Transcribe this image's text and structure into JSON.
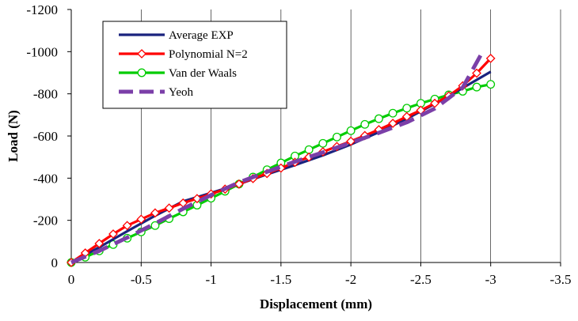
{
  "chart_data": {
    "type": "line",
    "title": "",
    "xlabel": "Displacement (mm)",
    "ylabel": "Load (N)",
    "xlim": [
      0,
      -3.5
    ],
    "ylim": [
      0,
      -1200
    ],
    "x_ticks": [
      0,
      -0.5,
      -1,
      -1.5,
      -2,
      -2.5,
      -3,
      -3.5
    ],
    "y_ticks": [
      0,
      -200,
      -400,
      -600,
      -800,
      -1000,
      -1200
    ],
    "x_tick_labels": [
      "0",
      "-0.5",
      "-1",
      "-1.5",
      "-2",
      "-2.5",
      "-3",
      "-3.5"
    ],
    "y_tick_labels": [
      "0",
      "-200",
      "-400",
      "-600",
      "-800",
      "-1000",
      "-1200"
    ],
    "grid": "vertical",
    "legend_position": "top-left",
    "series": [
      {
        "name": "Average EXP",
        "color": "#1a237e",
        "style": "solid",
        "marker": "none",
        "points": [
          [
            0,
            0
          ],
          [
            -0.2,
            -72
          ],
          [
            -0.4,
            -148
          ],
          [
            -0.6,
            -222
          ],
          [
            -0.8,
            -290
          ],
          [
            -1.0,
            -330
          ],
          [
            -1.2,
            -372
          ],
          [
            -1.4,
            -418
          ],
          [
            -1.6,
            -462
          ],
          [
            -1.8,
            -508
          ],
          [
            -2.0,
            -560
          ],
          [
            -2.2,
            -618
          ],
          [
            -2.4,
            -682
          ],
          [
            -2.6,
            -752
          ],
          [
            -2.8,
            -828
          ],
          [
            -3.0,
            -905
          ]
        ]
      },
      {
        "name": "Polynomial N=2",
        "color": "#ff0000",
        "style": "solid",
        "marker": "diamond",
        "points": [
          [
            0,
            0
          ],
          [
            -0.1,
            -45
          ],
          [
            -0.2,
            -90
          ],
          [
            -0.3,
            -135
          ],
          [
            -0.4,
            -175
          ],
          [
            -0.5,
            -205
          ],
          [
            -0.6,
            -235
          ],
          [
            -0.7,
            -258
          ],
          [
            -0.8,
            -282
          ],
          [
            -0.9,
            -303
          ],
          [
            -1.0,
            -325
          ],
          [
            -1.1,
            -348
          ],
          [
            -1.2,
            -372
          ],
          [
            -1.3,
            -398
          ],
          [
            -1.4,
            -422
          ],
          [
            -1.5,
            -448
          ],
          [
            -1.6,
            -475
          ],
          [
            -1.7,
            -500
          ],
          [
            -1.8,
            -525
          ],
          [
            -1.9,
            -550
          ],
          [
            -2.0,
            -575
          ],
          [
            -2.1,
            -602
          ],
          [
            -2.2,
            -630
          ],
          [
            -2.3,
            -660
          ],
          [
            -2.4,
            -692
          ],
          [
            -2.5,
            -722
          ],
          [
            -2.6,
            -755
          ],
          [
            -2.7,
            -790
          ],
          [
            -2.8,
            -838
          ],
          [
            -2.9,
            -898
          ],
          [
            -3.0,
            -968
          ]
        ]
      },
      {
        "name": "Van der Waals",
        "color": "#00cc00",
        "style": "solid",
        "marker": "circle",
        "points": [
          [
            0,
            0
          ],
          [
            -0.1,
            -25
          ],
          [
            -0.2,
            -55
          ],
          [
            -0.3,
            -85
          ],
          [
            -0.4,
            -115
          ],
          [
            -0.5,
            -145
          ],
          [
            -0.6,
            -175
          ],
          [
            -0.7,
            -208
          ],
          [
            -0.8,
            -240
          ],
          [
            -0.9,
            -272
          ],
          [
            -1.0,
            -305
          ],
          [
            -1.1,
            -338
          ],
          [
            -1.2,
            -372
          ],
          [
            -1.3,
            -405
          ],
          [
            -1.4,
            -440
          ],
          [
            -1.5,
            -472
          ],
          [
            -1.6,
            -505
          ],
          [
            -1.7,
            -535
          ],
          [
            -1.8,
            -565
          ],
          [
            -1.9,
            -595
          ],
          [
            -2.0,
            -625
          ],
          [
            -2.1,
            -655
          ],
          [
            -2.2,
            -682
          ],
          [
            -2.3,
            -708
          ],
          [
            -2.4,
            -732
          ],
          [
            -2.5,
            -755
          ],
          [
            -2.6,
            -775
          ],
          [
            -2.7,
            -795
          ],
          [
            -2.8,
            -812
          ],
          [
            -2.9,
            -832
          ],
          [
            -3.0,
            -845
          ]
        ]
      },
      {
        "name": "Yeoh",
        "color": "#7b3fa8",
        "style": "dashed",
        "marker": "none",
        "points": [
          [
            0,
            0
          ],
          [
            -0.2,
            -55
          ],
          [
            -0.4,
            -118
          ],
          [
            -0.6,
            -185
          ],
          [
            -0.8,
            -255
          ],
          [
            -1.0,
            -320
          ],
          [
            -1.2,
            -380
          ],
          [
            -1.4,
            -430
          ],
          [
            -1.6,
            -478
          ],
          [
            -1.8,
            -522
          ],
          [
            -2.0,
            -568
          ],
          [
            -2.2,
            -615
          ],
          [
            -2.4,
            -665
          ],
          [
            -2.6,
            -730
          ],
          [
            -2.8,
            -830
          ],
          [
            -2.93,
            -985
          ]
        ]
      }
    ]
  }
}
